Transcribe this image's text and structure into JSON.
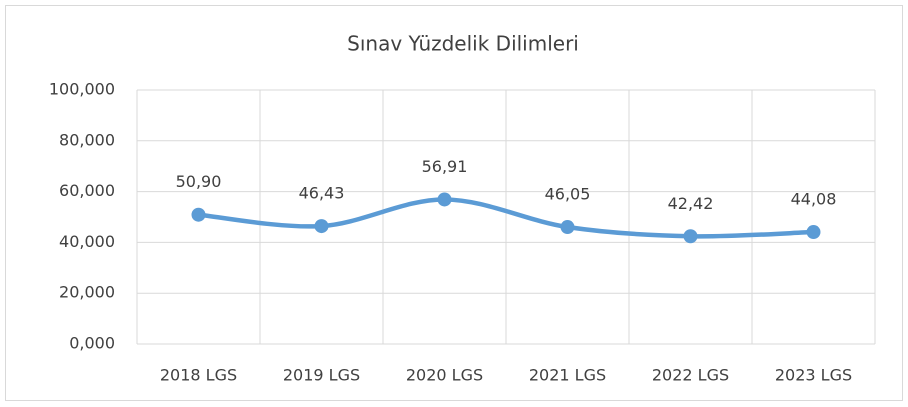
{
  "chart_data": {
    "type": "line",
    "title": "Sınav Yüzdelik Dilimleri",
    "categories": [
      "2018 LGS",
      "2019 LGS",
      "2020 LGS",
      "2021 LGS",
      "2022 LGS",
      "2023 LGS"
    ],
    "series": [
      {
        "color": "#5b9bd5",
        "values": [
          50.9,
          46.43,
          56.91,
          46.05,
          42.42,
          44.08
        ],
        "value_labels": [
          "50,90",
          "46,43",
          "56,91",
          "46,05",
          "42,42",
          "44,08"
        ]
      }
    ],
    "ylim": [
      0,
      100
    ],
    "yticks": [
      {
        "value": 0,
        "label": "0,000"
      },
      {
        "value": 20,
        "label": "20,000"
      },
      {
        "value": 40,
        "label": "40,000"
      },
      {
        "value": 60,
        "label": "60,000"
      },
      {
        "value": 80,
        "label": "80,000"
      },
      {
        "value": 100,
        "label": "100,000"
      }
    ],
    "grid": true
  }
}
